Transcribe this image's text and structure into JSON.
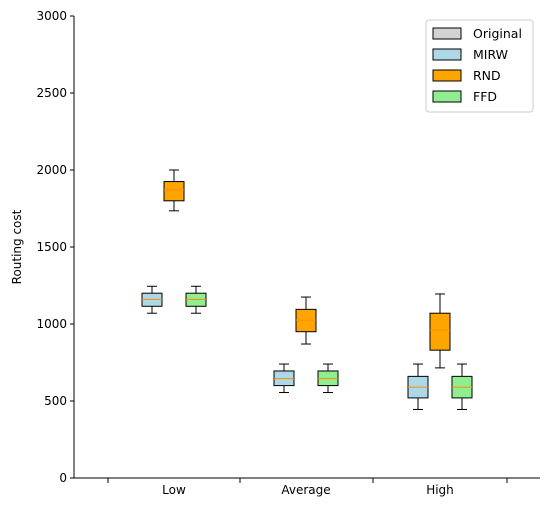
{
  "chart_data": {
    "type": "box",
    "ylabel": "Routing cost",
    "xlabel": "",
    "ylim": [
      0,
      3000
    ],
    "yticks": [
      0,
      500,
      1000,
      1500,
      2000,
      2500,
      3000
    ],
    "categories": [
      "Low",
      "Average",
      "High"
    ],
    "legend_position": "top-right",
    "grid": false,
    "series": [
      {
        "name": "Original",
        "color": "#d3d3d3",
        "boxes": [
          null,
          null,
          null
        ]
      },
      {
        "name": "MIRW",
        "color": "#add8e6",
        "boxes": [
          {
            "min": 1070,
            "q1": 1115,
            "median": 1160,
            "q3": 1200,
            "max": 1245
          },
          {
            "min": 555,
            "q1": 600,
            "median": 645,
            "q3": 695,
            "max": 740
          },
          {
            "min": 445,
            "q1": 520,
            "median": 590,
            "q3": 660,
            "max": 740
          }
        ]
      },
      {
        "name": "RND",
        "color": "#ffa500",
        "boxes": [
          {
            "min": 1735,
            "q1": 1800,
            "median": 1870,
            "q3": 1925,
            "max": 2000
          },
          {
            "min": 870,
            "q1": 950,
            "median": 1025,
            "q3": 1095,
            "max": 1175
          },
          {
            "min": 715,
            "q1": 830,
            "median": 960,
            "q3": 1070,
            "max": 1195
          }
        ]
      },
      {
        "name": "FFD",
        "color": "#90ee90",
        "boxes": [
          {
            "min": 1070,
            "q1": 1115,
            "median": 1160,
            "q3": 1200,
            "max": 1245
          },
          {
            "min": 555,
            "q1": 600,
            "median": 645,
            "q3": 695,
            "max": 740
          },
          {
            "min": 445,
            "q1": 520,
            "median": 590,
            "q3": 660,
            "max": 740
          }
        ]
      }
    ],
    "median_color": "#ff8c00"
  }
}
